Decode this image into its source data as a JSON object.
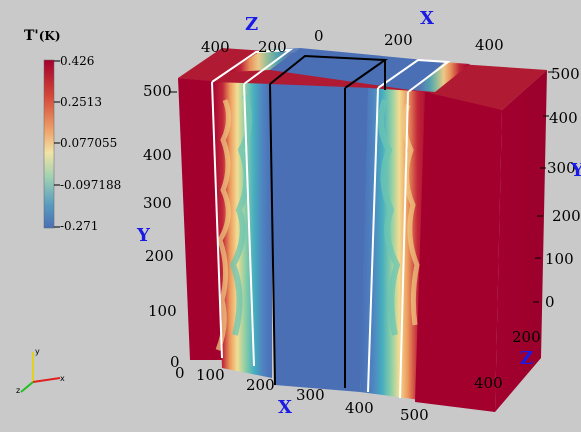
{
  "colorbar": {
    "title_main": "T'",
    "title_unit": "(K)",
    "max": "0.426",
    "tick1": "0.2513",
    "tick2": "0.077055",
    "tick3": "-0.097188",
    "min": "-0.271",
    "colors": [
      "#a3002e",
      "#d54a3a",
      "#eea36b",
      "#f1e3a5",
      "#9fd0b2",
      "#5a9cc0",
      "#4a6fb5"
    ]
  },
  "axes": {
    "z_name": "Z",
    "x_name": "X",
    "y_name": "Y",
    "top_z_ticks": [
      "400",
      "200",
      "0"
    ],
    "top_x_ticks": [
      "200",
      "400"
    ],
    "left_y_ticks": [
      "500",
      "400",
      "300",
      "200",
      "100",
      "0"
    ],
    "bottom_x_ticks": [
      "0",
      "100",
      "200",
      "300",
      "400",
      "500"
    ],
    "right_y_ticks": [
      "500",
      "400",
      "300",
      "200",
      "100",
      "0"
    ],
    "right_z_ticks": [
      "200",
      "400"
    ],
    "right_y_clip": "Y",
    "right_y_clip2": "3"
  },
  "orientation": {
    "y": "y",
    "x": "x",
    "z": "z"
  },
  "colors": {
    "background": "#c9c9c9",
    "hot": "#a3002e",
    "cold": "#4a6fb5",
    "axis_label": "#1a1ae6"
  }
}
